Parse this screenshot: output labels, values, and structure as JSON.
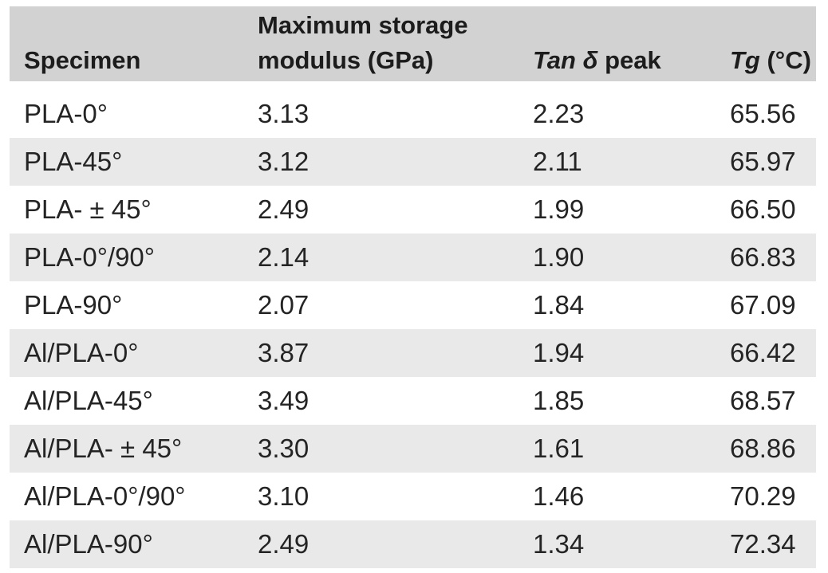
{
  "table": {
    "columns": [
      {
        "label": "Specimen"
      },
      {
        "label": "Maximum storage modulus (GPa)"
      },
      {
        "label_italic": "Tan δ",
        "label_regular": " peak"
      },
      {
        "label_italic": "Tg",
        "label_regular": " (°C)"
      }
    ],
    "rows": [
      {
        "specimen": "PLA-0°",
        "modulus": "3.13",
        "tan_delta": "2.23",
        "tg": "65.56"
      },
      {
        "specimen": "PLA-45°",
        "modulus": "3.12",
        "tan_delta": "2.11",
        "tg": "65.97"
      },
      {
        "specimen": "PLA- ± 45°",
        "modulus": "2.49",
        "tan_delta": "1.99",
        "tg": "66.50"
      },
      {
        "specimen": "PLA-0°/90°",
        "modulus": "2.14",
        "tan_delta": "1.90",
        "tg": "66.83"
      },
      {
        "specimen": "PLA-90°",
        "modulus": "2.07",
        "tan_delta": "1.84",
        "tg": "67.09"
      },
      {
        "specimen": "Al/PLA-0°",
        "modulus": "3.87",
        "tan_delta": "1.94",
        "tg": "66.42"
      },
      {
        "specimen": "Al/PLA-45°",
        "modulus": "3.49",
        "tan_delta": "1.85",
        "tg": "68.57"
      },
      {
        "specimen": "Al/PLA- ± 45°",
        "modulus": "3.30",
        "tan_delta": "1.61",
        "tg": "68.86"
      },
      {
        "specimen": "Al/PLA-0°/90°",
        "modulus": "3.10",
        "tan_delta": "1.46",
        "tg": "70.29"
      },
      {
        "specimen": "Al/PLA-90°",
        "modulus": "2.49",
        "tan_delta": "1.34",
        "tg": "72.34"
      }
    ],
    "colors": {
      "header_bg": "#d2d2d2",
      "stripe_bg": "#e9e9e9",
      "text": "#242424"
    }
  }
}
